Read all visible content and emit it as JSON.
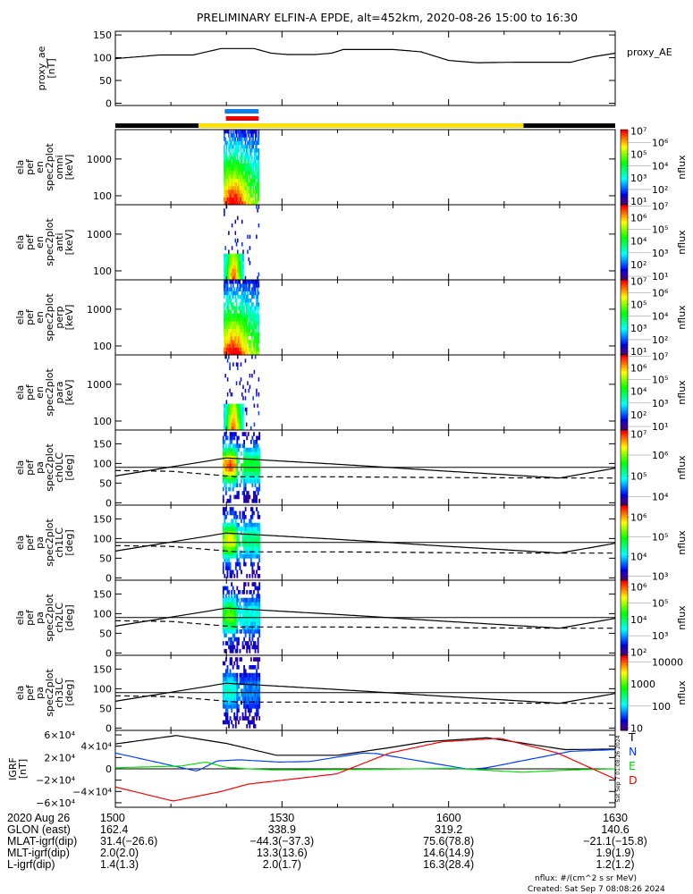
{
  "title": "PRELIMINARY ELFIN-A EPDE, alt=452km, 2020-08-26 15:00 to 16:30",
  "colors": {
    "ae_line": "#000000",
    "orbit_dark": "#000000",
    "orbit_sunlit": "#f8e000",
    "bar_blue": "#0a80f0",
    "bar_red": "#f00000",
    "igrf_T": "#000000",
    "igrf_N": "#0040ff",
    "igrf_E": "#00e000",
    "igrf_D": "#ff0000"
  },
  "chart_data": [
    {
      "type": "line",
      "name": "proxy_ae",
      "ylabel_lines": [
        "proxy_ae",
        "[nT]"
      ],
      "legend": "proxy_AE",
      "yticks": [
        "150",
        "100",
        "50",
        "0"
      ],
      "ytick_values": [
        150,
        100,
        50,
        0
      ],
      "ylim": [
        -5,
        158
      ],
      "x_minutes_after_1500": [
        0,
        5,
        8,
        14,
        19,
        25,
        28,
        31,
        36,
        39,
        41,
        50,
        55,
        60,
        65,
        72,
        82,
        86,
        90
      ],
      "values": [
        98,
        103,
        106,
        106,
        120,
        120,
        110,
        107,
        107,
        110,
        118,
        118,
        113,
        94,
        89,
        90,
        90,
        102,
        110
      ]
    },
    {
      "type": "bars",
      "name": "science_zone_bars",
      "bars": [
        {
          "color": "bar_blue",
          "start_min": 19.7,
          "end_min": 25.8
        },
        {
          "color": "bar_red",
          "start_min": 19.9,
          "end_min": 25.8
        }
      ],
      "orbit_segments": [
        {
          "color": "orbit_dark",
          "start_min": 0,
          "end_min": 15
        },
        {
          "color": "orbit_sunlit",
          "start_min": 15,
          "end_min": 73.5
        },
        {
          "color": "orbit_dark",
          "start_min": 73.5,
          "end_min": 90
        }
      ]
    },
    {
      "type": "heatmap",
      "name": "energy_spectrograms",
      "y_scale": "log",
      "ylim_keV": [
        57,
        6300
      ],
      "yticks": [
        "1000",
        "100"
      ],
      "ytick_values": [
        1000,
        100
      ],
      "active_window_min": [
        19.5,
        25.8
      ],
      "colorbar_label": "nflux",
      "panels": [
        {
          "id": "omni",
          "ylabel_lines": [
            "ela",
            "pef",
            "en",
            "spec2plot",
            "omni",
            "[keV]"
          ],
          "colorbar_ticks": [
            "10⁷",
            "10⁶",
            "10⁵",
            "10⁴",
            "10³",
            "10²",
            "10¹"
          ],
          "colorbar_range_log": [
            1,
            7
          ],
          "fill": "dense"
        },
        {
          "id": "anti",
          "ylabel_lines": [
            "ela",
            "pef",
            "en",
            "spec2plot",
            "anti",
            "[keV]"
          ],
          "colorbar_ticks": [
            "10⁷",
            "10⁶",
            "10⁵",
            "10⁴",
            "10³",
            "10²",
            "10¹"
          ],
          "colorbar_range_log": [
            1,
            7
          ],
          "fill": "sparse"
        },
        {
          "id": "perp",
          "ylabel_lines": [
            "ela",
            "pef",
            "en",
            "spec2plot",
            "perp",
            "[keV]"
          ],
          "colorbar_ticks": [
            "10⁷",
            "10⁶",
            "10⁵",
            "10⁴",
            "10³",
            "10²",
            "10¹"
          ],
          "colorbar_range_log": [
            1,
            7
          ],
          "fill": "dense"
        },
        {
          "id": "para",
          "ylabel_lines": [
            "ela",
            "pef",
            "en",
            "spec2plot",
            "para",
            "[keV]"
          ],
          "colorbar_ticks": [
            "10⁷",
            "10⁶",
            "10⁵",
            "10⁴",
            "10³",
            "10²",
            "10¹"
          ],
          "colorbar_range_log": [
            1,
            7
          ],
          "fill": "sparse"
        }
      ]
    },
    {
      "type": "heatmap",
      "name": "pitch_angle_spectrograms",
      "ylim_deg": [
        -6,
        185
      ],
      "yticks": [
        "150",
        "100",
        "50",
        "0"
      ],
      "ytick_values": [
        150,
        100,
        50,
        0
      ],
      "colorbar_label": "nflux",
      "reference_line_deg": 90,
      "losscone_minutes": [
        0,
        20,
        40,
        60,
        80,
        90
      ],
      "losscone_deg": [
        68,
        114,
        98,
        80,
        63,
        88
      ],
      "antilosscone_minutes": [
        0,
        10,
        22,
        40,
        60,
        80,
        90
      ],
      "antilosscone_deg": [
        82,
        80,
        66,
        66,
        64,
        63,
        63
      ],
      "panels": [
        {
          "id": "ch0LC",
          "ylabel_lines": [
            "ela",
            "pef",
            "pa",
            "spec2plot",
            "ch0LC",
            "[deg]"
          ],
          "colorbar_ticks": [
            "10⁷",
            "10⁶",
            "10⁵",
            "10⁴"
          ],
          "colorbar_range_log": [
            3.6,
            7.2
          ],
          "peak": 0.85
        },
        {
          "id": "ch1LC",
          "ylabel_lines": [
            "ela",
            "pef",
            "pa",
            "spec2plot",
            "ch1LC",
            "[deg]"
          ],
          "colorbar_ticks": [
            "10⁶",
            "10⁵",
            "10⁴",
            "10³"
          ],
          "colorbar_range_log": [
            2.8,
            6.6
          ],
          "peak": 0.7
        },
        {
          "id": "ch2LC",
          "ylabel_lines": [
            "ela",
            "pef",
            "pa",
            "spec2plot",
            "ch2LC",
            "[deg]"
          ],
          "colorbar_ticks": [
            "10⁶",
            "10⁵",
            "10⁴",
            "10³",
            "10²"
          ],
          "colorbar_range_log": [
            1.8,
            6.4
          ],
          "peak": 0.55
        },
        {
          "id": "ch3LC",
          "ylabel_lines": [
            "ela",
            "pef",
            "pa",
            "spec2plot",
            "ch3LC",
            "[deg]"
          ],
          "colorbar_ticks": [
            "10000",
            "1000",
            "100",
            "10"
          ],
          "colorbar_range_log": [
            0.9,
            4.3
          ],
          "peak": 0.3
        }
      ]
    },
    {
      "type": "line",
      "name": "igrf",
      "ylabel_lines": [
        "IGRF",
        "[nT]"
      ],
      "yticks": [
        "6×10⁴",
        "4×10⁴",
        "2×10⁴",
        "0",
        "−2×10⁴",
        "−4×10⁴",
        "−6×10⁴"
      ],
      "ytick_values": [
        60000,
        40000,
        20000,
        0,
        -20000,
        -40000,
        -60000
      ],
      "ylim": [
        -68000,
        68000
      ],
      "zero_line": true,
      "side_stamp": "Sat Sep  7 01:08:26 2024",
      "series": [
        {
          "name": "T",
          "color": "igrf_T",
          "x": [
            0,
            11,
            20,
            29,
            40,
            49,
            56,
            67,
            81,
            90
          ],
          "values": [
            44000,
            59000,
            45000,
            24000,
            24000,
            37000,
            48000,
            55000,
            34000,
            35000
          ]
        },
        {
          "name": "N",
          "color": "igrf_N",
          "x": [
            0,
            11,
            14.7,
            18.3,
            22.3,
            29.5,
            35,
            44.6,
            47,
            63.7,
            66.9,
            82,
            90
          ],
          "values": [
            28000,
            4000,
            -4000,
            14000,
            16000,
            12000,
            13000,
            28000,
            27000,
            -1000,
            2000,
            31000,
            34000
          ]
        },
        {
          "name": "E",
          "color": "igrf_E",
          "x": [
            0,
            11.9,
            16.3,
            19.7,
            24,
            28.7,
            47,
            60.5,
            73.3,
            82,
            90
          ],
          "values": [
            2000,
            5000,
            12000,
            3000,
            0,
            -2000,
            -1000,
            1000,
            -6000,
            -2000,
            0
          ]
        },
        {
          "name": "D",
          "color": "igrf_D",
          "x": [
            0,
            10.4,
            19.1,
            23.9,
            31.1,
            39.8,
            49.4,
            58.9,
            69.3,
            79.6,
            90
          ],
          "values": [
            -32000,
            -57000,
            -40000,
            -27000,
            -19000,
            -9000,
            28000,
            48000,
            54000,
            28000,
            -18000
          ]
        }
      ]
    }
  ],
  "x_axis": {
    "ticks": [
      "1500",
      "1530",
      "1600",
      "1630"
    ],
    "tick_minutes": [
      0,
      30,
      60,
      90
    ],
    "minor_step_min": 10
  },
  "ephemeris": {
    "row_labels": [
      "2020 Aug 26",
      "GLON (east)",
      "MLAT-igrf(dip)",
      "MLT-igrf(dip)",
      "L-igrf(dip)"
    ],
    "columns": [
      [
        "1500",
        "162.4",
        "31.4(−26.6)",
        "2.0(2.0)",
        "1.4(1.3)"
      ],
      [
        "1530",
        "338.9",
        "−44.3(−37.3)",
        "13.3(13.6)",
        "2.0(1.7)"
      ],
      [
        "1600",
        "319.2",
        "75.6(78.8)",
        "14.6(14.9)",
        "16.3(28.4)"
      ],
      [
        "1630",
        "140.6",
        "−21.1(−15.8)",
        "1.9(1.9)",
        "1.2(1.2)"
      ]
    ]
  },
  "footer": {
    "units": "nflux: #/(cm^2 s sr MeV)",
    "created": "Created: Sat Sep  7 08:08:26 2024"
  }
}
